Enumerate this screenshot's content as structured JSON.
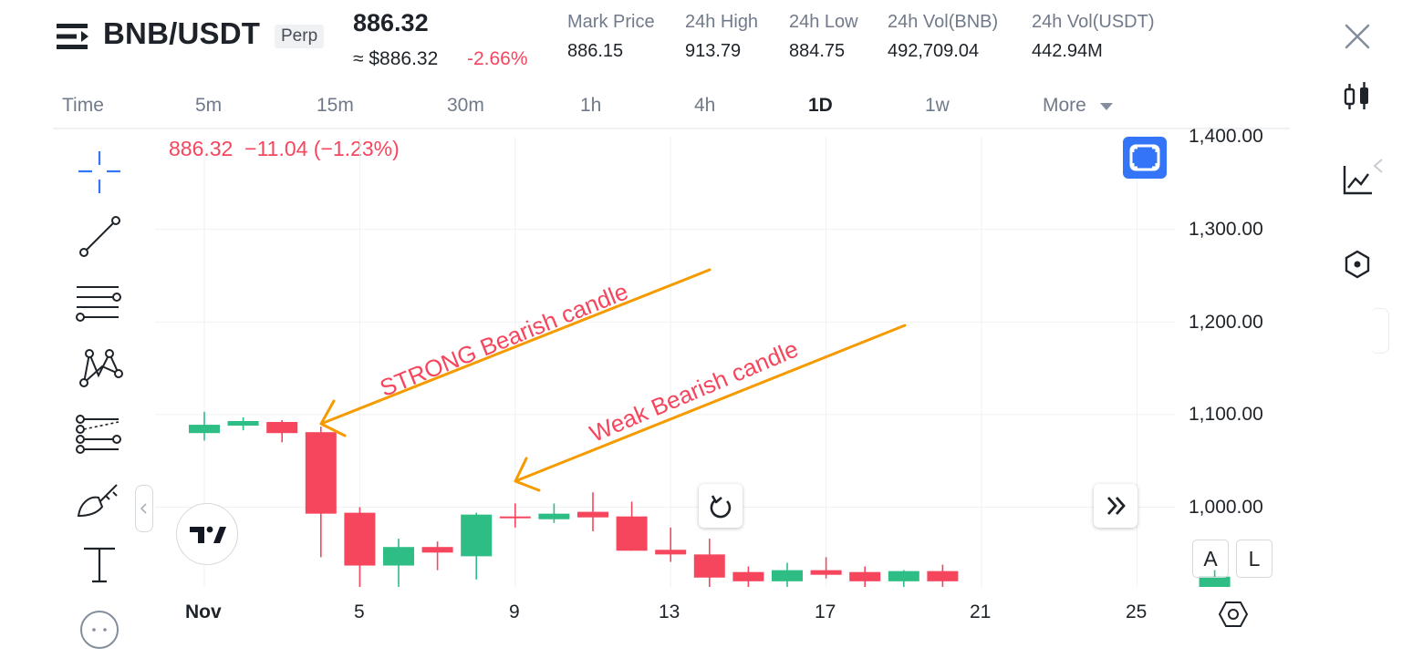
{
  "header": {
    "pair": "BNB/USDT",
    "contract_type": "Perp",
    "last_price": "886.32",
    "usd_price": "≈ $886.32",
    "change_pct": "-2.66%",
    "stats": [
      {
        "label": "Mark Price",
        "value": "886.15"
      },
      {
        "label": "24h High",
        "value": "913.79"
      },
      {
        "label": "24h Low",
        "value": "884.75"
      },
      {
        "label": "24h Vol(BNB)",
        "value": "492,709.04"
      },
      {
        "label": "24h Vol(USDT)",
        "value": "442.94M"
      }
    ]
  },
  "timeframes": {
    "items": [
      "Time",
      "5m",
      "15m",
      "30m",
      "1h",
      "4h",
      "1D",
      "1w",
      "More"
    ],
    "active": "1D"
  },
  "ohlc_readout": {
    "price": "886.32",
    "change": "−11.04 (−1.23%)"
  },
  "y_axis_labels": [
    "1,400.00",
    "1,300.00",
    "1,200.00",
    "1,100.00",
    "1,000.00"
  ],
  "x_axis_labels": [
    "Nov",
    "5",
    "9",
    "13",
    "17",
    "21",
    "25"
  ],
  "price_scale_buttons": {
    "auto": "A",
    "log": "L"
  },
  "annotations": {
    "strong": "STRONG Bearish candle",
    "weak": "Weak Bearish candle"
  },
  "colors": {
    "bull": "#2ebd85",
    "bear": "#f6465d",
    "annotation_text": "#f6465d",
    "arrow": "#f59b00",
    "accent": "#3375f6"
  },
  "chart_data": {
    "type": "candlestick",
    "interval": "1D",
    "ylim": [
      900,
      1400
    ],
    "candles": [
      {
        "day": "Nov 1",
        "open": 1080,
        "high": 1103,
        "low": 1072,
        "close": 1089
      },
      {
        "day": "Nov 2",
        "open": 1088,
        "high": 1097,
        "low": 1083,
        "close": 1093
      },
      {
        "day": "Nov 3",
        "open": 1092,
        "high": 1094,
        "low": 1070,
        "close": 1080
      },
      {
        "day": "Nov 4",
        "open": 1081,
        "high": 1087,
        "low": 946,
        "close": 993
      },
      {
        "day": "Nov 5",
        "open": 994,
        "high": 1000,
        "low": 913,
        "close": 937
      },
      {
        "day": "Nov 6",
        "open": 937,
        "high": 966,
        "low": 913,
        "close": 957
      },
      {
        "day": "Nov 7",
        "open": 957,
        "high": 963,
        "low": 932,
        "close": 951
      },
      {
        "day": "Nov 8",
        "open": 947,
        "high": 994,
        "low": 922,
        "close": 992
      },
      {
        "day": "Nov 9",
        "open": 990,
        "high": 1004,
        "low": 978,
        "close": 989
      },
      {
        "day": "Nov 10",
        "open": 987,
        "high": 1004,
        "low": 983,
        "close": 993
      },
      {
        "day": "Nov 11",
        "open": 995,
        "high": 1016,
        "low": 974,
        "close": 989
      },
      {
        "day": "Nov 12",
        "open": 990,
        "high": 1006,
        "low": 953,
        "close": 953
      },
      {
        "day": "Nov 13",
        "open": 954,
        "high": 978,
        "low": 941,
        "close": 949
      },
      {
        "day": "Nov 14",
        "open": 949,
        "high": 966,
        "low": 911,
        "close": 924
      },
      {
        "day": "Nov 15",
        "open": 930,
        "high": 936,
        "low": 900,
        "close": 920
      },
      {
        "day": "Nov 16",
        "open": 920,
        "high": 940,
        "low": 900,
        "close": 932
      },
      {
        "day": "Nov 17",
        "open": 932,
        "high": 946,
        "low": 923,
        "close": 927
      },
      {
        "day": "Nov 18",
        "open": 930,
        "high": 936,
        "low": 911,
        "close": 920
      },
      {
        "day": "Nov 19",
        "open": 920,
        "high": 932,
        "low": 905,
        "close": 931
      },
      {
        "day": "Nov 20",
        "open": 931,
        "high": 938,
        "low": 910,
        "close": 920
      },
      {
        "day": "Nov 27",
        "open": 905,
        "high": 932,
        "low": 900,
        "close": 925
      }
    ]
  }
}
